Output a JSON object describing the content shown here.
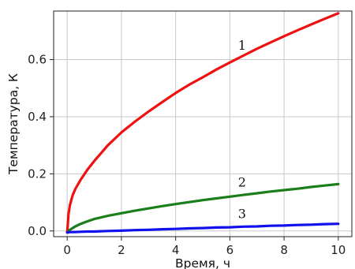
{
  "chart_data": {
    "type": "line",
    "title": "",
    "xlabel": "Время, ч",
    "ylabel": "Температура, К",
    "xlim": [
      -0.5,
      10.5
    ],
    "ylim": [
      -0.02,
      0.77
    ],
    "xticks": [
      0,
      2,
      4,
      6,
      8,
      10
    ],
    "xtick_labels": [
      "0",
      "2",
      "4",
      "6",
      "8",
      "10"
    ],
    "yticks": [
      0.0,
      0.2,
      0.4,
      0.6
    ],
    "ytick_labels": [
      "0.0",
      "0.2",
      "0.4",
      "0.6"
    ],
    "grid": true,
    "x": [
      0,
      0.05,
      0.1,
      0.2,
      0.3,
      0.5,
      0.75,
      1,
      1.5,
      2,
      2.5,
      3,
      3.5,
      4,
      4.5,
      5,
      5.5,
      6,
      6.5,
      7,
      7.5,
      8,
      8.5,
      9,
      9.5,
      10
    ],
    "series": [
      {
        "name": "1",
        "color": "#ee1111",
        "values": [
          -0.005,
          0.06,
          0.09,
          0.125,
          0.147,
          0.18,
          0.215,
          0.245,
          0.3,
          0.345,
          0.383,
          0.418,
          0.451,
          0.483,
          0.512,
          0.538,
          0.565,
          0.59,
          0.614,
          0.638,
          0.66,
          0.682,
          0.703,
          0.723,
          0.743,
          0.762
        ]
      },
      {
        "name": "2",
        "color": "#1a7f1a",
        "values": [
          -0.005,
          0.0,
          0.004,
          0.01,
          0.016,
          0.025,
          0.034,
          0.042,
          0.053,
          0.062,
          0.071,
          0.079,
          0.087,
          0.094,
          0.101,
          0.108,
          0.114,
          0.12,
          0.126,
          0.132,
          0.138,
          0.143,
          0.148,
          0.154,
          0.159,
          0.164
        ]
      },
      {
        "name": "3",
        "color": "#1111ee",
        "values": [
          -0.005,
          -0.005,
          -0.004,
          -0.004,
          -0.004,
          -0.003,
          -0.002,
          -0.002,
          0.0,
          0.001,
          0.003,
          0.004,
          0.006,
          0.007,
          0.009,
          0.01,
          0.012,
          0.013,
          0.015,
          0.016,
          0.018,
          0.019,
          0.021,
          0.022,
          0.024,
          0.025
        ]
      }
    ],
    "annotations": [
      {
        "text": "1",
        "x": 6.45,
        "y": 0.635
      },
      {
        "text": "2",
        "x": 6.45,
        "y": 0.155
      },
      {
        "text": "3",
        "x": 6.45,
        "y": 0.045
      }
    ]
  }
}
